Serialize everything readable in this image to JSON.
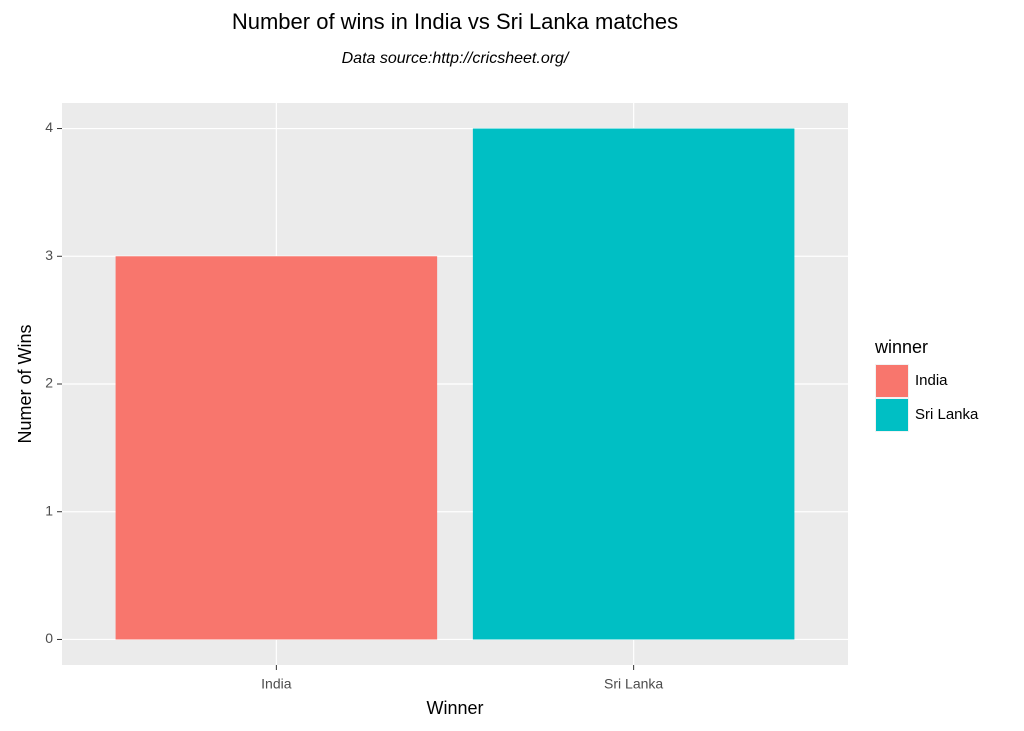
{
  "chart_data": {
    "type": "bar",
    "title": "Number of wins in India  vs  Sri Lanka  matches",
    "subtitle": "Data source:http://cricsheet.org/",
    "x_label": "Winner",
    "y_label": "Numer of Wins",
    "categories": [
      "India",
      "Sri Lanka"
    ],
    "values": [
      3,
      4
    ],
    "colors": [
      "#F8766D",
      "#00BFC4"
    ],
    "ylim": [
      -0.2,
      4.2
    ],
    "yticks": [
      0,
      1,
      2,
      3,
      4
    ],
    "grid": true,
    "legend": {
      "title": "winner",
      "position": "right"
    }
  }
}
